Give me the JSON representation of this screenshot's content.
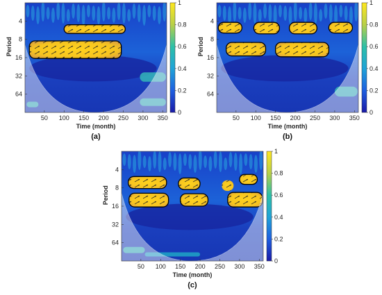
{
  "chart_data": [
    {
      "type": "heatmap",
      "panel_label": "(a)",
      "xlabel": "Time (month)",
      "ylabel": "Period",
      "x_ticks": [
        50,
        100,
        150,
        200,
        250,
        300,
        350
      ],
      "y_ticks": [
        4,
        8,
        16,
        32,
        64
      ],
      "xlim": [
        1,
        360
      ],
      "ylim": [
        2,
        128
      ],
      "y_scale": "log2",
      "colorbar": {
        "ticks": [
          0,
          0.2,
          0.4,
          0.6,
          0.8,
          1
        ],
        "range": [
          0,
          1
        ]
      },
      "colors": {
        "low": "#1a1aa8",
        "mid": "#1fb3c8",
        "high": "#ffd21e"
      },
      "regions": [
        {
          "x": [
            100,
            255
          ],
          "period": [
            4.6,
            6.4
          ],
          "value": 0.9
        },
        {
          "x": [
            12,
            245
          ],
          "period": [
            8.5,
            16.5
          ],
          "value": 0.97
        },
        {
          "x": [
            5,
            35
          ],
          "period": [
            85,
            105
          ],
          "value": 0.55
        },
        {
          "x": [
            292,
            358
          ],
          "period": [
            28,
            40
          ],
          "value": 0.55
        },
        {
          "x": [
            292,
            358
          ],
          "period": [
            75,
            100
          ],
          "value": 0.55
        }
      ],
      "significant_contours": [
        {
          "x": [
            100,
            255
          ],
          "period": [
            4.6,
            6.4
          ]
        },
        {
          "x": [
            12,
            245
          ],
          "period": [
            8.5,
            16.5
          ]
        }
      ]
    },
    {
      "type": "heatmap",
      "panel_label": "(b)",
      "xlabel": "Time (month)",
      "ylabel": "Period",
      "x_ticks": [
        50,
        100,
        150,
        200,
        250,
        300,
        350
      ],
      "y_ticks": [
        4,
        8,
        16,
        32,
        64
      ],
      "xlim": [
        1,
        360
      ],
      "ylim": [
        2,
        128
      ],
      "y_scale": "log2",
      "colorbar": {
        "ticks": [
          0,
          0.2,
          0.4,
          0.6,
          0.8,
          1
        ],
        "range": [
          0,
          1
        ]
      },
      "colors": {
        "low": "#1a1aa8",
        "mid": "#1fb3c8",
        "high": "#ffd21e"
      },
      "regions": [
        {
          "x": [
            5,
            65
          ],
          "period": [
            4.2,
            6.3
          ],
          "value": 0.9
        },
        {
          "x": [
            95,
            160
          ],
          "period": [
            4.2,
            6.5
          ],
          "value": 0.9
        },
        {
          "x": [
            185,
            255
          ],
          "period": [
            4.2,
            6.5
          ],
          "value": 0.88
        },
        {
          "x": [
            285,
            345
          ],
          "period": [
            4.2,
            6.3
          ],
          "value": 0.9
        },
        {
          "x": [
            25,
            125
          ],
          "period": [
            9,
            15
          ],
          "value": 0.92
        },
        {
          "x": [
            150,
            285
          ],
          "period": [
            9,
            15.5
          ],
          "value": 0.92
        },
        {
          "x": [
            300,
            358
          ],
          "period": [
            48,
            70
          ],
          "value": 0.55
        }
      ],
      "significant_contours": [
        {
          "x": [
            5,
            65
          ],
          "period": [
            4.2,
            6.3
          ]
        },
        {
          "x": [
            95,
            160
          ],
          "period": [
            4.2,
            6.5
          ]
        },
        {
          "x": [
            185,
            255
          ],
          "period": [
            4.2,
            6.5
          ]
        },
        {
          "x": [
            285,
            345
          ],
          "period": [
            4.2,
            6.3
          ]
        },
        {
          "x": [
            25,
            125
          ],
          "period": [
            9,
            15
          ]
        },
        {
          "x": [
            150,
            285
          ],
          "period": [
            9,
            15.5
          ]
        }
      ]
    },
    {
      "type": "heatmap",
      "panel_label": "(c)",
      "xlabel": "Time (month)",
      "ylabel": "Period",
      "x_ticks": [
        50,
        100,
        150,
        200,
        250,
        300,
        350
      ],
      "y_ticks": [
        4,
        8,
        16,
        32,
        64
      ],
      "xlim": [
        1,
        360
      ],
      "ylim": [
        2,
        128
      ],
      "y_scale": "log2",
      "colorbar": {
        "ticks": [
          0,
          0.2,
          0.4,
          0.6,
          0.8,
          1
        ],
        "range": [
          0,
          1
        ]
      },
      "colors": {
        "low": "#1a1aa8",
        "mid": "#1fb3c8",
        "high": "#ffd21e"
      },
      "regions": [
        {
          "x": [
            18,
            115
          ],
          "period": [
            5.2,
            8.2
          ],
          "value": 0.9
        },
        {
          "x": [
            20,
            120
          ],
          "period": [
            9.8,
            16.5
          ],
          "value": 0.92
        },
        {
          "x": [
            145,
            200
          ],
          "period": [
            5.5,
            8.5
          ],
          "value": 0.88
        },
        {
          "x": [
            150,
            220
          ],
          "period": [
            10,
            16
          ],
          "value": 0.92
        },
        {
          "x": [
            255,
            285
          ],
          "period": [
            6,
            9
          ],
          "value": 0.85
        },
        {
          "x": [
            270,
            358
          ],
          "period": [
            9.5,
            16.5
          ],
          "value": 0.9
        },
        {
          "x": [
            300,
            345
          ],
          "period": [
            4.8,
            7
          ],
          "value": 0.85
        },
        {
          "x": [
            5,
            60
          ],
          "period": [
            75,
            95
          ],
          "value": 0.55
        },
        {
          "x": [
            60,
            200
          ],
          "period": [
            92,
            108
          ],
          "value": 0.45
        }
      ],
      "significant_contours": [
        {
          "x": [
            18,
            115
          ],
          "period": [
            5.2,
            8.2
          ]
        },
        {
          "x": [
            20,
            120
          ],
          "period": [
            9.8,
            16.5
          ]
        },
        {
          "x": [
            145,
            200
          ],
          "period": [
            5.5,
            8.5
          ]
        },
        {
          "x": [
            150,
            220
          ],
          "period": [
            10,
            16
          ]
        },
        {
          "x": [
            270,
            358
          ],
          "period": [
            9.5,
            16.5
          ]
        },
        {
          "x": [
            300,
            345
          ],
          "period": [
            4.8,
            7
          ]
        }
      ]
    }
  ]
}
